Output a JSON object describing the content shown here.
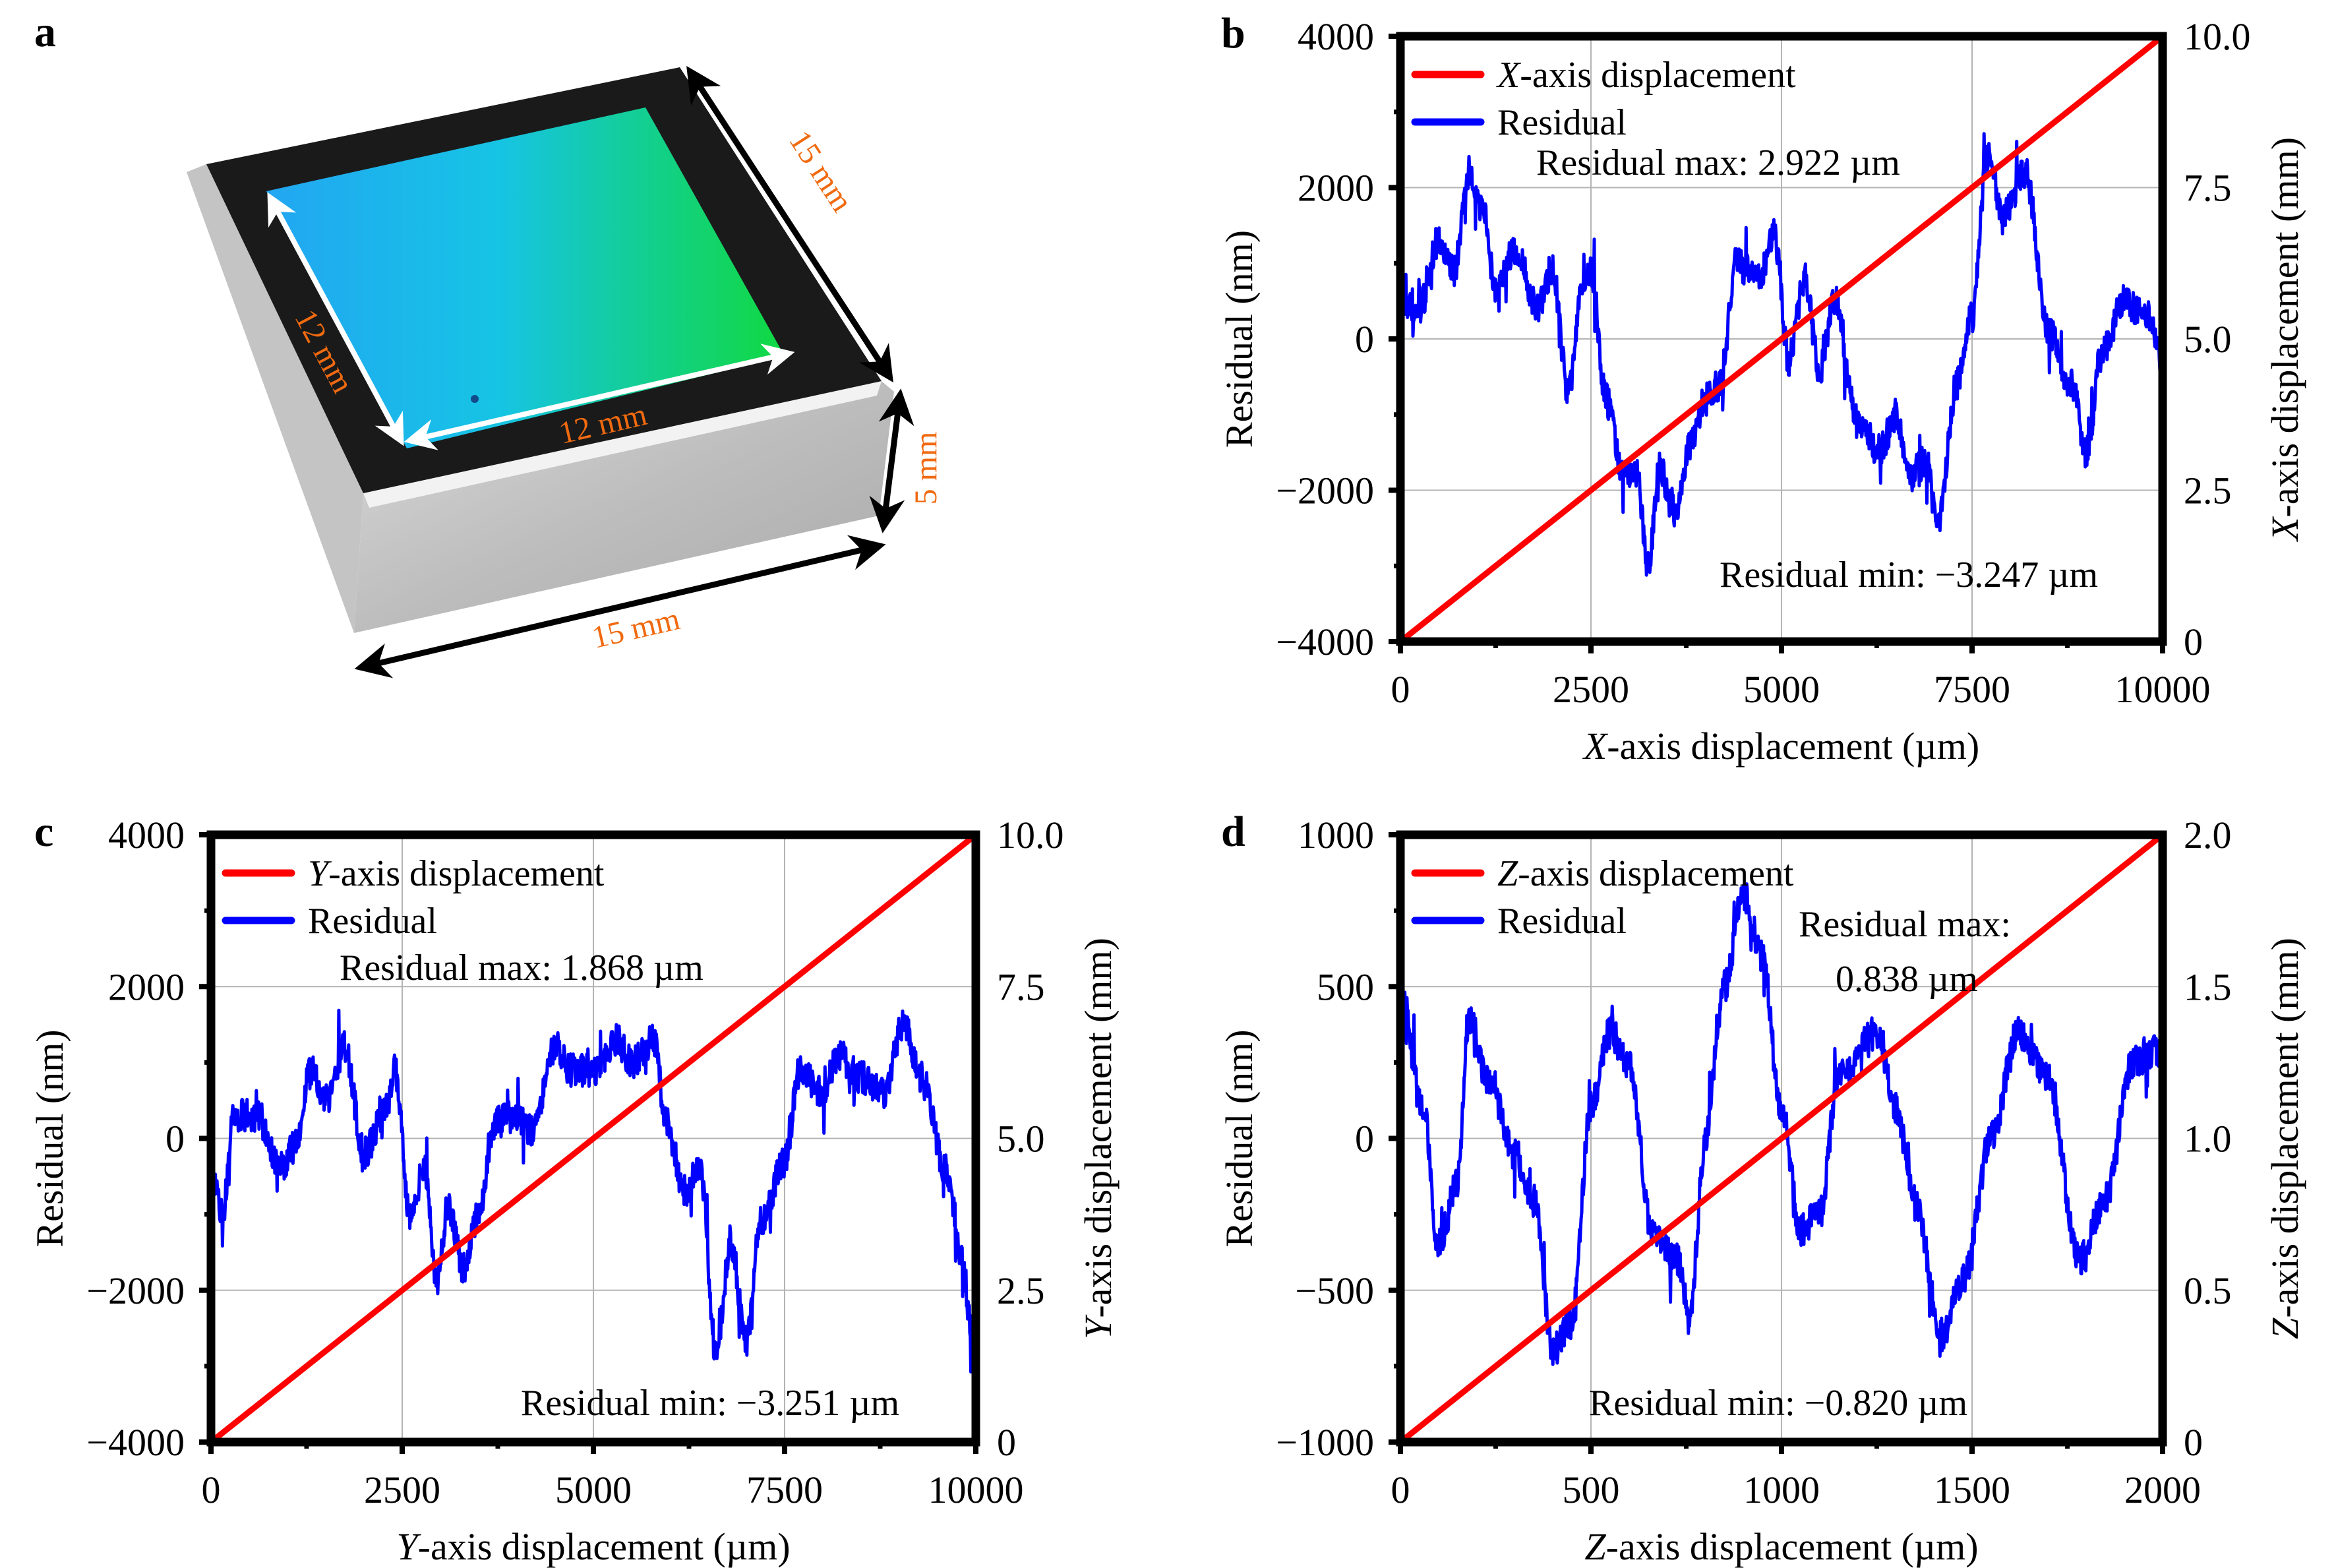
{
  "figure": {
    "panel_labels": [
      "a",
      "b",
      "c",
      "d"
    ]
  },
  "photo": {
    "label": "a",
    "dimensions": {
      "outer_top": "15 mm",
      "outer_bottom": "15 mm",
      "height": "5 mm",
      "inner_left": "12 mm",
      "inner_bottom": "12 mm"
    },
    "colors": {
      "grating_left": "#1fa8f0",
      "grating_mid": "#14c9dc",
      "grating_right": "#0fd83a",
      "frame": "#1a1a1a",
      "block": "#b8b8b8",
      "dim_text": "#f06a10"
    }
  },
  "colors": {
    "displacement": "#ff0000",
    "residual": "#0000ff",
    "grid": "#b4b4b4",
    "axis": "#000000"
  },
  "chart_data": [
    {
      "panel": "b",
      "type": "line",
      "title": "",
      "xlabel_italic": "X",
      "xlabel_rest": "-axis displacement (µm)",
      "ylabel": "Residual (nm)",
      "y2label_italic": "X",
      "y2label_rest": "-axis displacement (mm)",
      "xlim": [
        0,
        10000
      ],
      "ylim": [
        -4000,
        4000
      ],
      "y2lim": [
        0,
        10.0
      ],
      "xticks": [
        "0",
        "2500",
        "5000",
        "7500",
        "10000"
      ],
      "xtick_values": [
        0,
        2500,
        5000,
        7500,
        10000
      ],
      "yticks": [
        "4000",
        "2000",
        "0",
        "−2000",
        "−4000"
      ],
      "ytick_values": [
        4000,
        2000,
        0,
        -2000,
        -4000
      ],
      "y2ticks": [
        "10.0",
        "7.5",
        "5.0",
        "2.5",
        "0"
      ],
      "y2tick_values": [
        10.0,
        7.5,
        5.0,
        2.5,
        0
      ],
      "grid": true,
      "legend_position": "top-left",
      "legend": [
        {
          "italic": "X",
          "rest": "-axis displacement",
          "series": "displacement"
        },
        {
          "italic": "",
          "rest": "Residual",
          "series": "residual"
        }
      ],
      "annotations": {
        "max": "Residual max: 2.922 µm",
        "min": "Residual min: −3.247 µm"
      },
      "series": [
        {
          "name": "X-axis displacement",
          "axis": "right",
          "x": [
            0,
            10000
          ],
          "y": [
            0,
            10.0
          ]
        },
        {
          "name": "Residual",
          "axis": "left",
          "x": [
            0,
            250,
            500,
            700,
            900,
            1100,
            1250,
            1500,
            1800,
            2000,
            2200,
            2400,
            2500,
            2700,
            2900,
            3100,
            3250,
            3400,
            3600,
            3800,
            4000,
            4200,
            4400,
            4700,
            4900,
            5100,
            5300,
            5500,
            5700,
            6000,
            6300,
            6500,
            6700,
            6900,
            7050,
            7300,
            7500,
            7700,
            7900,
            8200,
            8500,
            8800,
            9000,
            9200,
            9500,
            9800,
            10000
          ],
          "y": [
            500,
            400,
            1300,
            900,
            2200,
            1600,
            600,
            1200,
            400,
            900,
            -700,
            700,
            900,
            -800,
            -1700,
            -1800,
            -3000,
            -1700,
            -2300,
            -1400,
            -800,
            -600,
            1000,
            800,
            1400,
            -300,
            800,
            -400,
            500,
            -1100,
            -1500,
            -1000,
            -1800,
            -1600,
            -2500,
            -600,
            300,
            2400,
            1600,
            2200,
            100,
            -600,
            -1500,
            -200,
            500,
            300,
            -300
          ],
          "max": 2922,
          "min": -3247
        }
      ]
    },
    {
      "panel": "c",
      "type": "line",
      "title": "",
      "xlabel_italic": "Y",
      "xlabel_rest": "-axis displacement (µm)",
      "ylabel": "Residual (nm)",
      "y2label_italic": "Y",
      "y2label_rest": "-axis displacement (mm)",
      "xlim": [
        0,
        10000
      ],
      "ylim": [
        -4000,
        4000
      ],
      "y2lim": [
        0,
        10.0
      ],
      "xticks": [
        "0",
        "2500",
        "5000",
        "7500",
        "10000"
      ],
      "xtick_values": [
        0,
        2500,
        5000,
        7500,
        10000
      ],
      "yticks": [
        "4000",
        "2000",
        "0",
        "−2000",
        "−4000"
      ],
      "ytick_values": [
        4000,
        2000,
        0,
        -2000,
        -4000
      ],
      "y2ticks": [
        "10.0",
        "7.5",
        "5.0",
        "2.5",
        "0"
      ],
      "y2tick_values": [
        10.0,
        7.5,
        5.0,
        2.5,
        0
      ],
      "grid": true,
      "legend_position": "top-left",
      "legend": [
        {
          "italic": "Y",
          "rest": "-axis displacement",
          "series": "displacement"
        },
        {
          "italic": "",
          "rest": "Residual",
          "series": "residual"
        }
      ],
      "annotations": {
        "max": "Residual max: 1.868 µm",
        "min": "Residual min: −3.251 µm"
      },
      "series": [
        {
          "name": "Y-axis displacement",
          "axis": "right",
          "x": [
            0,
            10000
          ],
          "y": [
            0,
            10.0
          ]
        },
        {
          "name": "Residual",
          "axis": "left",
          "x": [
            0,
            150,
            300,
            600,
            900,
            1100,
            1300,
            1500,
            1750,
            2000,
            2300,
            2400,
            2600,
            2800,
            2950,
            3100,
            3300,
            3500,
            3700,
            4000,
            4200,
            4500,
            4700,
            5000,
            5300,
            5500,
            5800,
            5950,
            6200,
            6400,
            6600,
            6800,
            7000,
            7200,
            7500,
            7700,
            8000,
            8200,
            8500,
            8800,
            9050,
            9300,
            9600,
            9800,
            10000
          ],
          "y": [
            -400,
            -1000,
            300,
            300,
            -400,
            -100,
            900,
            500,
            1200,
            -200,
            400,
            900,
            -1000,
            -400,
            -1900,
            -900,
            -1700,
            -1000,
            200,
            300,
            100,
            1200,
            900,
            900,
            1300,
            1000,
            1300,
            200,
            -700,
            -400,
            -2800,
            -1400,
            -2700,
            -1100,
            -300,
            900,
            600,
            1100,
            800,
            600,
            1500,
            800,
            -400,
            -1500,
            -3000
          ],
          "max": 1868,
          "min": -3251
        }
      ]
    },
    {
      "panel": "d",
      "type": "line",
      "title": "",
      "xlabel_italic": "Z",
      "xlabel_rest": "-axis displacement (µm)",
      "ylabel": "Residual (nm)",
      "y2label_italic": "Z",
      "y2label_rest": "-axis displacement (mm)",
      "xlim": [
        0,
        2000
      ],
      "ylim": [
        -1000,
        1000
      ],
      "y2lim": [
        0,
        2.0
      ],
      "xticks": [
        "0",
        "500",
        "1000",
        "1500",
        "2000"
      ],
      "xtick_values": [
        0,
        500,
        1000,
        1500,
        2000
      ],
      "yticks": [
        "1000",
        "500",
        "0",
        "−500",
        "−1000"
      ],
      "ytick_values": [
        1000,
        500,
        0,
        -500,
        -1000
      ],
      "y2ticks": [
        "2.0",
        "1.5",
        "1.0",
        "0.5",
        "0"
      ],
      "y2tick_values": [
        2.0,
        1.5,
        1.0,
        0.5,
        0
      ],
      "grid": true,
      "legend_position": "top-left",
      "legend": [
        {
          "italic": "Z",
          "rest": "-axis displacement",
          "series": "displacement"
        },
        {
          "italic": "",
          "rest": "Residual",
          "series": "residual"
        }
      ],
      "annotations": {
        "max_line1": "Residual max:",
        "max_line2": "0.838 µm",
        "min": "Residual min: −0.820 µm"
      },
      "series": [
        {
          "name": "Z-axis displacement",
          "axis": "right",
          "x": [
            0,
            2000
          ],
          "y": [
            0,
            2.0
          ]
        },
        {
          "name": "Residual",
          "axis": "left",
          "x": [
            0,
            60,
            100,
            150,
            180,
            230,
            300,
            350,
            400,
            450,
            500,
            550,
            600,
            660,
            730,
            760,
            800,
            850,
            900,
            950,
            1000,
            1050,
            1100,
            1150,
            1250,
            1300,
            1350,
            1420,
            1480,
            1550,
            1620,
            1700,
            1780,
            1850,
            1920,
            2000
          ],
          "y": [
            500,
            100,
            -350,
            -150,
            400,
            200,
            -50,
            -200,
            -700,
            -600,
            100,
            350,
            250,
            -300,
            -400,
            -600,
            0,
            500,
            800,
            600,
            100,
            -300,
            -250,
            200,
            350,
            100,
            -200,
            -650,
            -450,
            0,
            350,
            200,
            -400,
            -200,
            250,
            300
          ],
          "max": 838,
          "min": -820
        }
      ]
    }
  ]
}
